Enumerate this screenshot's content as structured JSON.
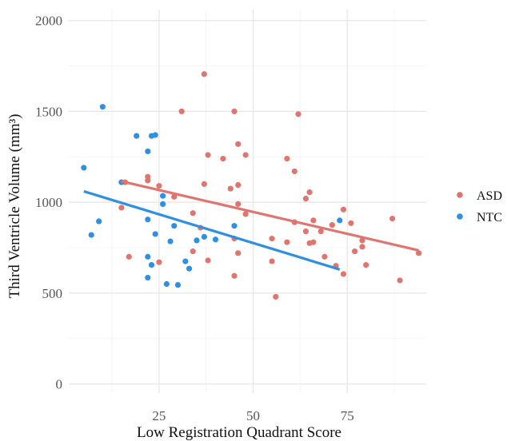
{
  "chart_data": {
    "type": "scatter",
    "xlabel": "Low Registration Quadrant Score",
    "ylabel": "Third Ventricle Volume (mm³)",
    "xlim": [
      1,
      96
    ],
    "ylim": [
      -50,
      2060
    ],
    "x_ticks": [
      25,
      50,
      75
    ],
    "x_tick_labels": [
      "25",
      "50",
      "75"
    ],
    "y_ticks": [
      0,
      500,
      1000,
      1500,
      2000
    ],
    "y_tick_labels": [
      "0",
      "500",
      "1000",
      "1500",
      "2000"
    ],
    "grid": true,
    "legend_position": "right",
    "series": [
      {
        "name": "ASD",
        "color": "#e07570",
        "points": [
          [
            15,
            970
          ],
          [
            16,
            1110
          ],
          [
            17,
            700
          ],
          [
            22,
            1140
          ],
          [
            22,
            1120
          ],
          [
            25,
            1090
          ],
          [
            25,
            670
          ],
          [
            29,
            1030
          ],
          [
            31,
            1500
          ],
          [
            34,
            940
          ],
          [
            34,
            730
          ],
          [
            36,
            860
          ],
          [
            37,
            1705
          ],
          [
            37,
            1100
          ],
          [
            38,
            1260
          ],
          [
            38,
            680
          ],
          [
            42,
            1240
          ],
          [
            44,
            1075
          ],
          [
            45,
            1500
          ],
          [
            45,
            800
          ],
          [
            45,
            595
          ],
          [
            46,
            1320
          ],
          [
            46,
            1095
          ],
          [
            46,
            990
          ],
          [
            46,
            720
          ],
          [
            48,
            1260
          ],
          [
            48,
            935
          ],
          [
            55,
            800
          ],
          [
            55,
            675
          ],
          [
            56,
            480
          ],
          [
            59,
            1240
          ],
          [
            59,
            780
          ],
          [
            61,
            1170
          ],
          [
            61,
            890
          ],
          [
            62,
            1485
          ],
          [
            64,
            1020
          ],
          [
            64,
            840
          ],
          [
            65,
            1055
          ],
          [
            65,
            775
          ],
          [
            66,
            900
          ],
          [
            66,
            780
          ],
          [
            68,
            840
          ],
          [
            69,
            700
          ],
          [
            71,
            875
          ],
          [
            72,
            650
          ],
          [
            74,
            960
          ],
          [
            74,
            605
          ],
          [
            76,
            885
          ],
          [
            77,
            730
          ],
          [
            79,
            790
          ],
          [
            79,
            755
          ],
          [
            80,
            655
          ],
          [
            87,
            910
          ],
          [
            89,
            570
          ],
          [
            94,
            720
          ]
        ],
        "trend": [
          [
            15,
            1115
          ],
          [
            94,
            735
          ]
        ]
      },
      {
        "name": "NTC",
        "color": "#2f8fe0",
        "points": [
          [
            5,
            1190
          ],
          [
            7,
            820
          ],
          [
            9,
            895
          ],
          [
            10,
            1525
          ],
          [
            15,
            1110
          ],
          [
            19,
            1365
          ],
          [
            22,
            1280
          ],
          [
            22,
            905
          ],
          [
            22,
            700
          ],
          [
            22,
            585
          ],
          [
            23,
            1365
          ],
          [
            23,
            655
          ],
          [
            24,
            1370
          ],
          [
            24,
            825
          ],
          [
            26,
            1035
          ],
          [
            26,
            990
          ],
          [
            27,
            550
          ],
          [
            28,
            785
          ],
          [
            29,
            870
          ],
          [
            30,
            545
          ],
          [
            32,
            675
          ],
          [
            33,
            635
          ],
          [
            35,
            790
          ],
          [
            37,
            810
          ],
          [
            40,
            795
          ],
          [
            45,
            870
          ],
          [
            73,
            900
          ]
        ],
        "trend": [
          [
            5,
            1060
          ],
          [
            73,
            630
          ]
        ]
      }
    ]
  }
}
